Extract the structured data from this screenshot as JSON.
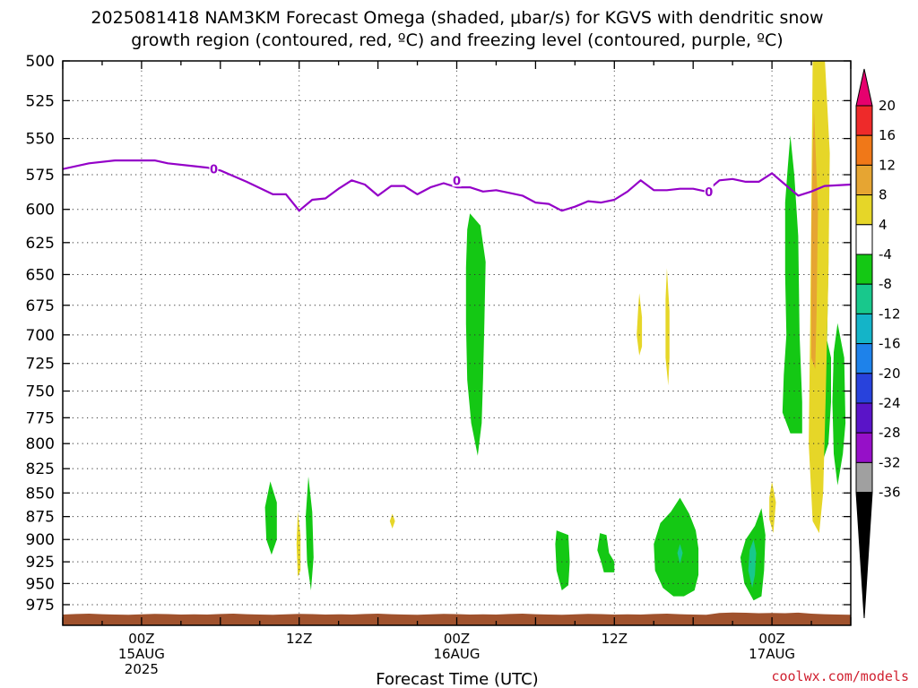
{
  "title": {
    "line1": "2025081418 NAM3KM Forecast Omega (shaded, μbar/s) for KGVS with dendritic snow",
    "line2": "growth region (contoured, red, ºC) and freezing level (contoured, purple, ºC)"
  },
  "watermark": "coolwx.com/models",
  "chart_data": {
    "type": "heatmap",
    "xlabel": "Forecast Time (UTC)",
    "ylabel": "",
    "x_ticks": [
      {
        "hour": 6,
        "lines": [
          "00Z",
          "15AUG",
          "2025"
        ]
      },
      {
        "hour": 18,
        "lines": [
          "12Z"
        ]
      },
      {
        "hour": 30,
        "lines": [
          "00Z",
          "16AUG"
        ]
      },
      {
        "hour": 42,
        "lines": [
          "12Z"
        ]
      },
      {
        "hour": 54,
        "lines": [
          "00Z",
          "17AUG"
        ]
      }
    ],
    "xlim": [
      0,
      60
    ],
    "y_ticks": [
      500,
      525,
      550,
      575,
      600,
      625,
      650,
      675,
      700,
      725,
      750,
      775,
      800,
      825,
      850,
      875,
      900,
      925,
      950,
      975
    ],
    "ylim": [
      500,
      1000
    ],
    "y_scale": "log-pressure",
    "grid": true,
    "colorbar": {
      "levels": [
        20,
        16,
        12,
        8,
        4,
        -4,
        -8,
        -12,
        -16,
        -20,
        -24,
        -28,
        -32,
        -36
      ],
      "colors": [
        "#e6006e",
        "#ee2a2a",
        "#f07818",
        "#e6a532",
        "#e6d628",
        "#ffffff",
        "#14c814",
        "#18c88c",
        "#14b4c8",
        "#1e82ea",
        "#2842dc",
        "#5a14c8",
        "#9610c8",
        "#a0a0a0",
        "#000000"
      ]
    },
    "freezing_level": {
      "color": "#9400c8",
      "label": "0",
      "points": [
        [
          0,
          571
        ],
        [
          2,
          567
        ],
        [
          4,
          565
        ],
        [
          6,
          565
        ],
        [
          7,
          565
        ],
        [
          8,
          567
        ],
        [
          10,
          569
        ],
        [
          11,
          570
        ],
        [
          12,
          572
        ],
        [
          14,
          580
        ],
        [
          16,
          589
        ],
        [
          17,
          589
        ],
        [
          18,
          601
        ],
        [
          19,
          593
        ],
        [
          20,
          592
        ],
        [
          21,
          585
        ],
        [
          22,
          579
        ],
        [
          23,
          582
        ],
        [
          24,
          590
        ],
        [
          25,
          583
        ],
        [
          26,
          583
        ],
        [
          27,
          589
        ],
        [
          28,
          584
        ],
        [
          29,
          581
        ],
        [
          30,
          584
        ],
        [
          31,
          584
        ],
        [
          32,
          587
        ],
        [
          33,
          586
        ],
        [
          34,
          588
        ],
        [
          35,
          590
        ],
        [
          36,
          595
        ],
        [
          37,
          596
        ],
        [
          38,
          601
        ],
        [
          39,
          598
        ],
        [
          40,
          594
        ],
        [
          41,
          595
        ],
        [
          42,
          593
        ],
        [
          43,
          587
        ],
        [
          44,
          579
        ],
        [
          45,
          586
        ],
        [
          46,
          586
        ],
        [
          47,
          585
        ],
        [
          48,
          585
        ],
        [
          49,
          587
        ],
        [
          50,
          579
        ],
        [
          51,
          578
        ],
        [
          52,
          580
        ],
        [
          53,
          580
        ],
        [
          54,
          574
        ],
        [
          55,
          582
        ],
        [
          56,
          590
        ],
        [
          57,
          587
        ],
        [
          58,
          583
        ],
        [
          60,
          582
        ]
      ],
      "label_points": [
        [
          11.5,
          571
        ],
        [
          30,
          579
        ],
        [
          49.2,
          587
        ]
      ]
    },
    "omega_regions": [
      {
        "value": -6,
        "color": "#14c814",
        "points": [
          [
            31,
            603
          ],
          [
            31.8,
            612
          ],
          [
            32.2,
            640
          ],
          [
            32.1,
            690
          ],
          [
            32.0,
            740
          ],
          [
            31.9,
            780
          ],
          [
            31.6,
            812
          ],
          [
            31.1,
            780
          ],
          [
            30.8,
            740
          ],
          [
            30.7,
            690
          ],
          [
            30.7,
            645
          ],
          [
            30.8,
            615
          ]
        ]
      },
      {
        "value": -6,
        "color": "#14c814",
        "points": [
          [
            15.8,
            838
          ],
          [
            16.3,
            860
          ],
          [
            16.3,
            900
          ],
          [
            15.9,
            917
          ],
          [
            15.5,
            900
          ],
          [
            15.4,
            865
          ]
        ]
      },
      {
        "value": -6,
        "color": "#14c814",
        "points": [
          [
            18.7,
            833
          ],
          [
            19.0,
            870
          ],
          [
            19.1,
            920
          ],
          [
            18.9,
            958
          ],
          [
            18.6,
            925
          ],
          [
            18.5,
            875
          ]
        ]
      },
      {
        "value": -6,
        "color": "#14c814",
        "points": [
          [
            37.6,
            890
          ],
          [
            38.5,
            895
          ],
          [
            38.6,
            925
          ],
          [
            38.5,
            952
          ],
          [
            38.0,
            958
          ],
          [
            37.6,
            935
          ],
          [
            37.5,
            905
          ]
        ]
      },
      {
        "value": -6,
        "color": "#14c814",
        "points": [
          [
            40.9,
            893
          ],
          [
            41.4,
            895
          ],
          [
            41.6,
            915
          ],
          [
            42.0,
            925
          ],
          [
            42.0,
            937
          ],
          [
            41.2,
            937
          ],
          [
            41.0,
            925
          ],
          [
            40.7,
            912
          ]
        ]
      },
      {
        "value": -6,
        "color": "#14c814",
        "points": [
          [
            47.0,
            855
          ],
          [
            47.7,
            872
          ],
          [
            48.2,
            890
          ],
          [
            48.4,
            910
          ],
          [
            48.4,
            940
          ],
          [
            48.1,
            958
          ],
          [
            47.3,
            965
          ],
          [
            46.5,
            965
          ],
          [
            45.7,
            955
          ],
          [
            45.1,
            935
          ],
          [
            45.0,
            905
          ],
          [
            45.5,
            882
          ],
          [
            46.3,
            870
          ]
        ]
      },
      {
        "value": -6,
        "color": "#14c814",
        "points": [
          [
            53.2,
            866
          ],
          [
            53.5,
            895
          ],
          [
            53.4,
            935
          ],
          [
            53.2,
            965
          ],
          [
            52.6,
            970
          ],
          [
            51.9,
            950
          ],
          [
            51.6,
            920
          ],
          [
            52.0,
            900
          ],
          [
            52.7,
            885
          ]
        ]
      },
      {
        "value": -10,
        "color": "#18c88c",
        "points": [
          [
            47.0,
            905
          ],
          [
            47.2,
            915
          ],
          [
            47.0,
            927
          ],
          [
            46.8,
            915
          ]
        ]
      },
      {
        "value": -10,
        "color": "#18c88c",
        "points": [
          [
            52.6,
            900
          ],
          [
            52.8,
            915
          ],
          [
            52.7,
            940
          ],
          [
            52.5,
            955
          ],
          [
            52.2,
            935
          ],
          [
            52.3,
            912
          ]
        ]
      },
      {
        "value": -6,
        "color": "#14c814",
        "points": [
          [
            55.4,
            548
          ],
          [
            55.7,
            575
          ],
          [
            56.0,
            620
          ],
          [
            56.1,
            700
          ],
          [
            56.3,
            760
          ],
          [
            56.3,
            790
          ],
          [
            55.4,
            790
          ],
          [
            54.8,
            770
          ],
          [
            54.9,
            735
          ],
          [
            55.1,
            700
          ],
          [
            55.0,
            650
          ],
          [
            55.0,
            595
          ],
          [
            55.2,
            570
          ]
        ]
      },
      {
        "value": -6,
        "color": "#14c814",
        "points": [
          [
            57.7,
            495
          ],
          [
            58.2,
            560
          ],
          [
            58.3,
            640
          ],
          [
            58.2,
            705
          ],
          [
            58.5,
            720
          ],
          [
            58.5,
            760
          ],
          [
            58.3,
            800
          ],
          [
            57.8,
            820
          ],
          [
            57.6,
            795
          ],
          [
            57.6,
            730
          ],
          [
            57.2,
            680
          ],
          [
            57.1,
            590
          ],
          [
            57.3,
            530
          ]
        ]
      },
      {
        "value": -6,
        "color": "#14c814",
        "points": [
          [
            59.0,
            690
          ],
          [
            59.5,
            720
          ],
          [
            59.6,
            780
          ],
          [
            59.4,
            810
          ],
          [
            59.0,
            842
          ],
          [
            58.7,
            810
          ],
          [
            58.6,
            760
          ],
          [
            58.7,
            715
          ]
        ]
      },
      {
        "value": 6,
        "color": "#e6d628",
        "points": [
          [
            58.0,
            495
          ],
          [
            58.4,
            560
          ],
          [
            58.3,
            650
          ],
          [
            58.1,
            750
          ],
          [
            57.9,
            850
          ],
          [
            57.6,
            893
          ],
          [
            57.1,
            880
          ],
          [
            56.8,
            800
          ],
          [
            56.9,
            700
          ],
          [
            57.0,
            600
          ],
          [
            57.1,
            500
          ]
        ]
      },
      {
        "value": 10,
        "color": "#e6a532",
        "points": [
          [
            57.2,
            530
          ],
          [
            57.5,
            600
          ],
          [
            57.4,
            680
          ],
          [
            57.3,
            730
          ],
          [
            57.0,
            720
          ],
          [
            57.0,
            620
          ],
          [
            57.1,
            560
          ]
        ]
      },
      {
        "value": 6,
        "color": "#e6d628",
        "points": [
          [
            17.9,
            870
          ],
          [
            18.1,
            895
          ],
          [
            18.1,
            935
          ],
          [
            17.9,
            942
          ],
          [
            17.8,
            905
          ]
        ]
      },
      {
        "value": 6,
        "color": "#e6d628",
        "points": [
          [
            25.1,
            872
          ],
          [
            25.3,
            880
          ],
          [
            25.1,
            888
          ],
          [
            24.9,
            880
          ]
        ]
      },
      {
        "value": 6,
        "color": "#e6d628",
        "points": [
          [
            43.9,
            665
          ],
          [
            44.1,
            685
          ],
          [
            44.1,
            710
          ],
          [
            43.9,
            718
          ],
          [
            43.7,
            700
          ],
          [
            43.8,
            680
          ]
        ]
      },
      {
        "value": 6,
        "color": "#e6d628",
        "points": [
          [
            46.0,
            645
          ],
          [
            46.2,
            680
          ],
          [
            46.2,
            720
          ],
          [
            46.1,
            745
          ],
          [
            45.9,
            720
          ],
          [
            45.9,
            670
          ]
        ]
      },
      {
        "value": 6,
        "color": "#e6d628",
        "points": [
          [
            54.0,
            838
          ],
          [
            54.3,
            860
          ],
          [
            54.1,
            893
          ],
          [
            53.8,
            878
          ],
          [
            53.8,
            855
          ]
        ]
      }
    ],
    "surface": {
      "color": "#a0522d"
    }
  }
}
